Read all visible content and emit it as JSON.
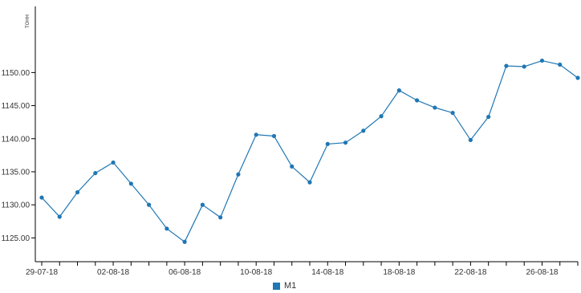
{
  "chart_data": {
    "type": "line",
    "ylabel": "TOHH",
    "xlabel": "",
    "ylim": [
      1121.4,
      1160.0
    ],
    "y_ticks": [
      1125.0,
      1130.0,
      1135.0,
      1140.0,
      1145.0,
      1150.0
    ],
    "y_tick_labels": [
      "1125.00",
      "1130.00",
      "1135.00",
      "1140.00",
      "1145.00",
      "1150.00"
    ],
    "x_ticks": [
      "29-07-18",
      "02-08-18",
      "06-08-18",
      "10-08-18",
      "14-08-18",
      "18-08-18",
      "22-08-18",
      "26-08-18"
    ],
    "series": [
      {
        "name": "M1",
        "color": "#1f77b4",
        "x": [
          "29-07-18",
          "30-07-18",
          "31-07-18",
          "01-08-18",
          "02-08-18",
          "03-08-18",
          "04-08-18",
          "05-08-18",
          "06-08-18",
          "07-08-18",
          "08-08-18",
          "09-08-18",
          "10-08-18",
          "11-08-18",
          "12-08-18",
          "13-08-18",
          "14-08-18",
          "15-08-18",
          "16-08-18",
          "17-08-18",
          "18-08-18",
          "19-08-18",
          "20-08-18",
          "21-08-18",
          "22-08-18",
          "23-08-18",
          "24-08-18",
          "25-08-18",
          "26-08-18",
          "27-08-18",
          "28-08-18"
        ],
        "values": [
          1131.1,
          1128.2,
          1131.9,
          1134.8,
          1136.4,
          1133.2,
          1130.0,
          1126.4,
          1124.4,
          1130.0,
          1128.1,
          1134.6,
          1140.6,
          1140.4,
          1135.8,
          1133.4,
          1139.2,
          1139.4,
          1141.2,
          1143.4,
          1147.3,
          1145.8,
          1144.7,
          1143.9,
          1139.8,
          1143.3,
          1151.0,
          1150.9,
          1151.8,
          1151.2,
          1149.2
        ]
      }
    ],
    "legend": {
      "position": "bottom-center",
      "label": "M1"
    },
    "grid": false
  }
}
